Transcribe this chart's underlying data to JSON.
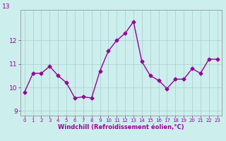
{
  "x": [
    0,
    1,
    2,
    3,
    4,
    5,
    6,
    7,
    8,
    9,
    10,
    11,
    12,
    13,
    14,
    15,
    16,
    17,
    18,
    19,
    20,
    21,
    22,
    23
  ],
  "y": [
    9.8,
    10.6,
    10.6,
    10.9,
    10.5,
    10.2,
    9.55,
    9.6,
    9.55,
    10.7,
    11.55,
    12.0,
    12.3,
    12.8,
    11.1,
    10.5,
    10.3,
    9.95,
    10.35,
    10.35,
    10.8,
    10.6,
    11.2,
    11.2
  ],
  "line_color": "#990099",
  "marker": "D",
  "markersize": 2.5,
  "linewidth": 1.0,
  "xlabel": "Windchill (Refroidissement éolien,°C)",
  "xlabel_fontsize": 6.0,
  "ylim": [
    8.8,
    13.3
  ],
  "xlim": [
    -0.5,
    23.5
  ],
  "yticks": [
    9,
    10,
    11,
    12
  ],
  "xticks": [
    0,
    1,
    2,
    3,
    4,
    5,
    6,
    7,
    8,
    9,
    10,
    11,
    12,
    13,
    14,
    15,
    16,
    17,
    18,
    19,
    20,
    21,
    22,
    23
  ],
  "xtick_fontsize": 5.0,
  "ytick_fontsize": 6.5,
  "bg_color": "#cceeed",
  "grid_color": "#aacccc",
  "spine_color": "#888888"
}
